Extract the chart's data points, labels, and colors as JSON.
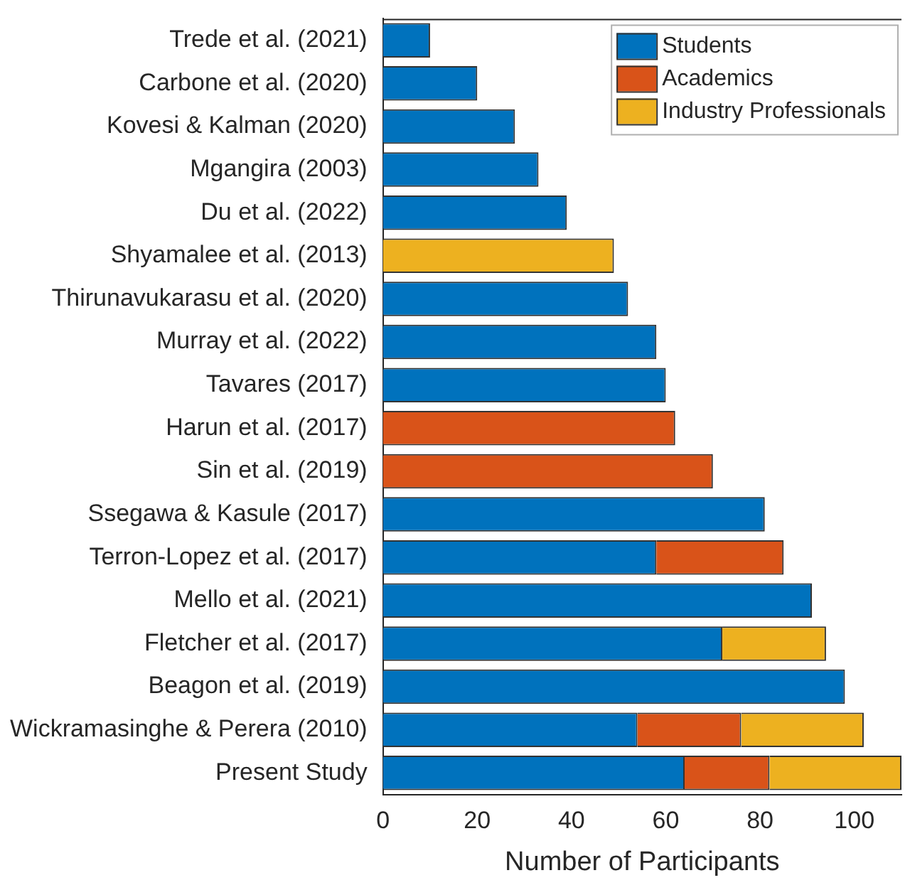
{
  "chart_data": {
    "type": "bar",
    "orientation": "horizontal",
    "stacked": true,
    "categories": [
      "Trede et al. (2021)",
      "Carbone et al. (2020)",
      "Kovesi & Kalman (2020)",
      "Mgangira (2003)",
      "Du et al. (2022)",
      "Shyamalee et al. (2013)",
      "Thirunavukarasu et al. (2020)",
      "Murray et al. (2022)",
      "Tavares (2017)",
      "Harun et al. (2017)",
      "Sin et al. (2019)",
      "Ssegawa & Kasule (2017)",
      "Terron-Lopez et al. (2017)",
      "Mello et al. (2021)",
      "Fletcher et al. (2017)",
      "Beagon et al. (2019)",
      "Wickramasinghe & Perera (2010)",
      "Present Study"
    ],
    "series": [
      {
        "name": "Students",
        "color": "#0072bd",
        "values": [
          10,
          20,
          28,
          33,
          39,
          null,
          52,
          58,
          60,
          null,
          null,
          81,
          58,
          91,
          72,
          98,
          54,
          64
        ]
      },
      {
        "name": "Academics",
        "color": "#d95319",
        "values": [
          null,
          null,
          null,
          null,
          null,
          null,
          null,
          null,
          null,
          62,
          70,
          null,
          27,
          null,
          null,
          null,
          22,
          18
        ]
      },
      {
        "name": "Industry Professionals",
        "color": "#edb120",
        "values": [
          null,
          null,
          null,
          null,
          null,
          49,
          null,
          null,
          null,
          null,
          null,
          null,
          null,
          null,
          22,
          null,
          26,
          28
        ]
      }
    ],
    "xlabel": "Number of Participants",
    "xlim": [
      0,
      110
    ],
    "xticks": [
      0,
      20,
      40,
      60,
      80,
      100
    ],
    "grid": false,
    "legend": "top right"
  }
}
